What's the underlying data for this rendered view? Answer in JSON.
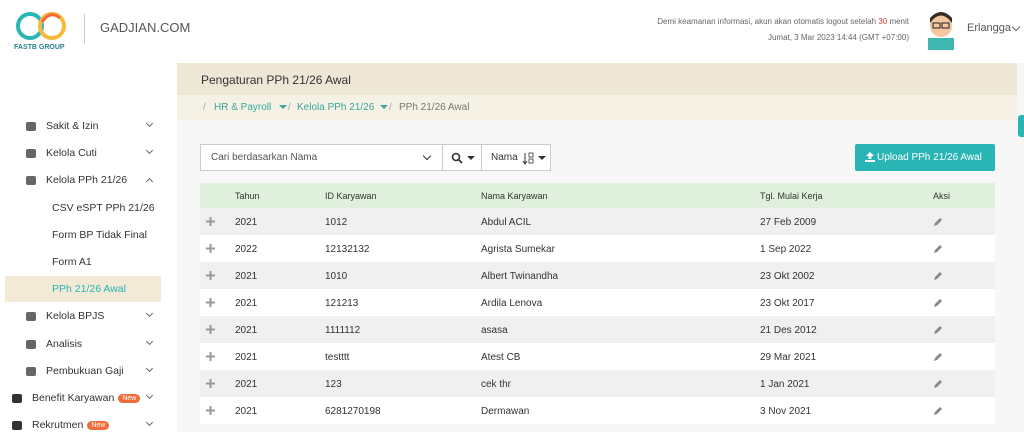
{
  "header": {
    "logo_text": "FASTB GROUP",
    "site": "GADJIAN.COM",
    "notice_before": "Demi keamanan informasi, akun akan otomatis logout setelah",
    "notice_minutes": "30",
    "notice_after": "menit",
    "datetime": "Jumat, 3 Mar 2023 14:44 (GMT +07:00)",
    "user": "Erlangga"
  },
  "sidebar": {
    "items": [
      {
        "label": "Sakit & Izin",
        "level": 1
      },
      {
        "label": "Kelola Cuti",
        "level": 1
      },
      {
        "label": "Kelola PPh 21/26",
        "level": 1,
        "expanded": true
      },
      {
        "label": "CSV eSPT PPh 21/26",
        "level": 2
      },
      {
        "label": "Form BP Tidak Final",
        "level": 2
      },
      {
        "label": "Form A1",
        "level": 2
      },
      {
        "label": "PPh 21/26 Awal",
        "level": 2,
        "active": true
      },
      {
        "label": "Kelola BPJS",
        "level": 1
      },
      {
        "label": "Analisis",
        "level": 1
      },
      {
        "label": "Pembukuan Gaji",
        "level": 1
      },
      {
        "label": "Benefit Karyawan",
        "level": 0,
        "badge": "New"
      },
      {
        "label": "Rekrutmen",
        "level": 0,
        "badge": "New"
      }
    ]
  },
  "page": {
    "title": "Pengaturan PPh 21/26 Awal",
    "breadcrumb": [
      "HR & Payroll",
      "Kelola PPh 21/26",
      "PPh 21/26 Awal"
    ]
  },
  "toolbar": {
    "search_placeholder": "Cari berdasarkan Nama",
    "sort_label": "Nama",
    "upload_button": "Upload PPh 21/26 Awal"
  },
  "table": {
    "headers": [
      "Tahun",
      "ID Karyawan",
      "Nama Karyawan",
      "Tgl. Mulai Kerja",
      "Aksi"
    ],
    "rows": [
      [
        "2021",
        "1012",
        "Abdul ACIL",
        "27 Feb 2009"
      ],
      [
        "2022",
        "12132132",
        "Agrista Sumekar",
        "1 Sep 2022"
      ],
      [
        "2021",
        "1010",
        "Albert Twinandha",
        "23 Okt 2002"
      ],
      [
        "2021",
        "121213",
        "Ardila Lenova",
        "23 Okt 2017"
      ],
      [
        "2021",
        "1111112",
        "asasa",
        "21 Des 2012"
      ],
      [
        "2021",
        "testttt",
        "Atest CB",
        "29 Mar 2021"
      ],
      [
        "2021",
        "123",
        "cek thr",
        "1 Jan 2021"
      ],
      [
        "2021",
        "6281270198",
        "Dermawan",
        "3 Nov 2021"
      ]
    ]
  }
}
